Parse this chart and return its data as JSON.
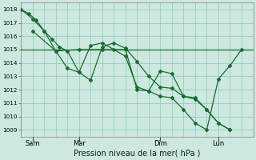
{
  "xlabel": "Pression niveau de la mer( hPa )",
  "ylim": [
    1008.5,
    1018.5
  ],
  "yticks": [
    1009,
    1010,
    1011,
    1012,
    1013,
    1014,
    1015,
    1016,
    1017,
    1018
  ],
  "background_color": "#cce8e0",
  "grid_color": "#99ccbb",
  "line_color": "#1a6b30",
  "flat_line": {
    "x": [
      0,
      10
    ],
    "y": [
      1015.0,
      1015.0
    ]
  },
  "series_a_x": [
    0,
    0.33,
    0.66,
    1.0,
    1.33,
    1.66,
    2.0,
    2.5,
    3.0,
    3.5,
    4.0,
    4.5,
    5.0,
    5.5,
    6.0,
    6.5,
    7.0,
    7.5,
    8.0,
    8.5,
    9.0,
    9.5
  ],
  "series_a_y": [
    1018.0,
    1017.7,
    1017.2,
    1016.4,
    1015.8,
    1015.2,
    1014.9,
    1013.3,
    1012.7,
    1015.2,
    1015.5,
    1015.1,
    1014.1,
    1013.0,
    1012.2,
    1012.1,
    1011.5,
    1011.3,
    1010.5,
    1009.5,
    1009.0,
    null
  ],
  "series_b_x": [
    0,
    0.5,
    1.0,
    1.5,
    2.0,
    2.5,
    3.0,
    3.5,
    4.0,
    4.5,
    5.0,
    5.5,
    6.0,
    6.5,
    7.0,
    7.5,
    8.0,
    8.5,
    9.0,
    9.5
  ],
  "series_b_y": [
    1018.0,
    1017.3,
    1016.4,
    1014.9,
    1013.6,
    1013.3,
    1015.3,
    1015.5,
    1015.0,
    1014.5,
    1012.2,
    1011.9,
    1013.4,
    1013.2,
    1011.5,
    1011.4,
    1010.5,
    1009.5,
    1009.0,
    null
  ],
  "series_c_x": [
    0.5,
    1.5,
    2.5,
    3.5,
    4.5,
    5.0,
    5.5,
    6.0,
    6.5,
    7.0,
    7.5,
    8.0,
    8.5,
    9.0,
    9.5
  ],
  "series_c_y": [
    1016.4,
    1014.9,
    1015.0,
    1015.0,
    1015.0,
    1012.0,
    1011.9,
    1011.5,
    1011.4,
    1010.5,
    1009.5,
    1009.0,
    1012.8,
    1013.8,
    1015.0
  ],
  "xtick_pos": [
    0.5,
    2.5,
    6.0,
    8.5
  ],
  "xtick_labels": [
    "Sam",
    "Mar",
    "Dim",
    "Lun"
  ],
  "xmin": 0,
  "xmax": 10.0
}
